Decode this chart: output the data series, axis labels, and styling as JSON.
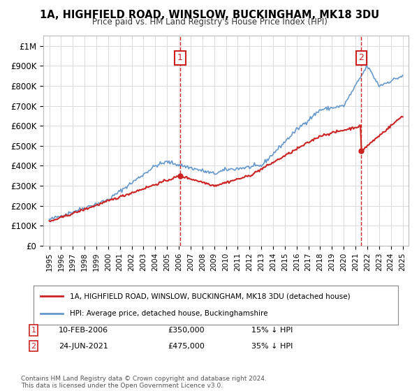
{
  "title": "1A, HIGHFIELD ROAD, WINSLOW, BUCKINGHAM, MK18 3DU",
  "subtitle": "Price paid vs. HM Land Registry's House Price Index (HPI)",
  "ylabel_ticks": [
    "£0",
    "£100K",
    "£200K",
    "£300K",
    "£400K",
    "£500K",
    "£600K",
    "£700K",
    "£800K",
    "£900K",
    "£1M"
  ],
  "ytick_vals": [
    0,
    100000,
    200000,
    300000,
    400000,
    500000,
    600000,
    700000,
    800000,
    900000,
    1000000
  ],
  "ylim": [
    0,
    1050000
  ],
  "hpi_color": "#6699cc",
  "price_color": "#cc2222",
  "transaction1": {
    "date": "10-FEB-2006",
    "price": 350000,
    "label": "1",
    "pct": "15% ↓ HPI"
  },
  "transaction2": {
    "date": "24-JUN-2021",
    "price": 475000,
    "label": "2",
    "pct": "35% ↓ HPI"
  },
  "legend_label1": "1A, HIGHFIELD ROAD, WINSLOW, BUCKINGHAM, MK18 3DU (detached house)",
  "legend_label2": "HPI: Average price, detached house, Buckinghamshire",
  "footnote": "Contains HM Land Registry data © Crown copyright and database right 2024.\nThis data is licensed under the Open Government Licence v3.0.",
  "background_color": "#f9f9f9",
  "grid_color": "#dddddd"
}
